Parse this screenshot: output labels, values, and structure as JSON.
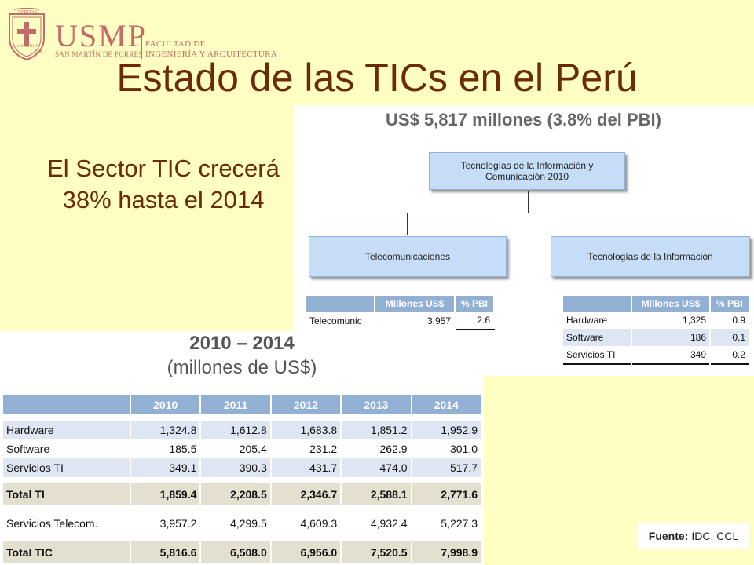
{
  "logo": {
    "name": "USMP",
    "crest_words": [
      "VERITAS",
      "LIBERABIT",
      "VOS"
    ],
    "university": "SAN MARTÍN DE PORRES",
    "faculty_line1": "FACULTAD DE",
    "faculty_line2": "INGENIERÍA Y ARQUITECTURA"
  },
  "title": "Estado de las TICs en el Perú",
  "subtitle": {
    "line1": "El Sector TIC crecerá",
    "line2": "38% hasta el 2014"
  },
  "org": {
    "heading": "US$ 5,817 millones (3.8% del PBI)",
    "root": [
      "Tecnologías de la Información y",
      "Comunicación 2010"
    ],
    "left": "Telecomunicaciones",
    "right": "Tecnologías de la Información",
    "left_table": {
      "headers": [
        "",
        "Millones US$",
        "% PBI"
      ],
      "rows": [
        [
          "Telecomunic",
          "3,957",
          "2.6"
        ]
      ]
    },
    "right_table": {
      "headers": [
        "",
        "Millones US$",
        "% PBI"
      ],
      "rows": [
        [
          "Hardware",
          "1,325",
          "0.9"
        ],
        [
          "Software",
          "186",
          "0.1"
        ],
        [
          "Servicios TI",
          "349",
          "0.2"
        ]
      ]
    }
  },
  "big": {
    "heading1": "2010 – 2014",
    "heading2": "(millones de US$)",
    "years": [
      "2010",
      "2011",
      "2012",
      "2013",
      "2014"
    ],
    "rows": [
      {
        "label": "Hardware",
        "values": [
          "1,324.8",
          "1,612.8",
          "1,683.8",
          "1,851.2",
          "1,952.9"
        ]
      },
      {
        "label": "Software",
        "values": [
          "185.5",
          "205.4",
          "231.2",
          "262.9",
          "301.0"
        ]
      },
      {
        "label": "Servicios TI",
        "values": [
          "349.1",
          "390.3",
          "431.7",
          "474.0",
          "517.7"
        ]
      },
      {
        "label": "Total TI",
        "values": [
          "1,859.4",
          "2,208.5",
          "2,346.7",
          "2,588.1",
          "2,771.6"
        ]
      },
      {
        "label": "Servicios Telecom.",
        "values": [
          "3,957.2",
          "4,299.5",
          "4,609.3",
          "4,932.4",
          "5,227.3"
        ]
      },
      {
        "label": "Total TIC",
        "values": [
          "5,816.6",
          "6,508.0",
          "6,956.0",
          "7,520.5",
          "7,998.9"
        ]
      }
    ]
  },
  "source": {
    "label": "Fuente:",
    "value": "IDC, CCL"
  },
  "colors": {
    "background": "#ffffc4",
    "title": "#6b2a08",
    "header_blue": "#92b0d4",
    "box_blue": "#c5ddf7",
    "logo": "#c46a69"
  }
}
